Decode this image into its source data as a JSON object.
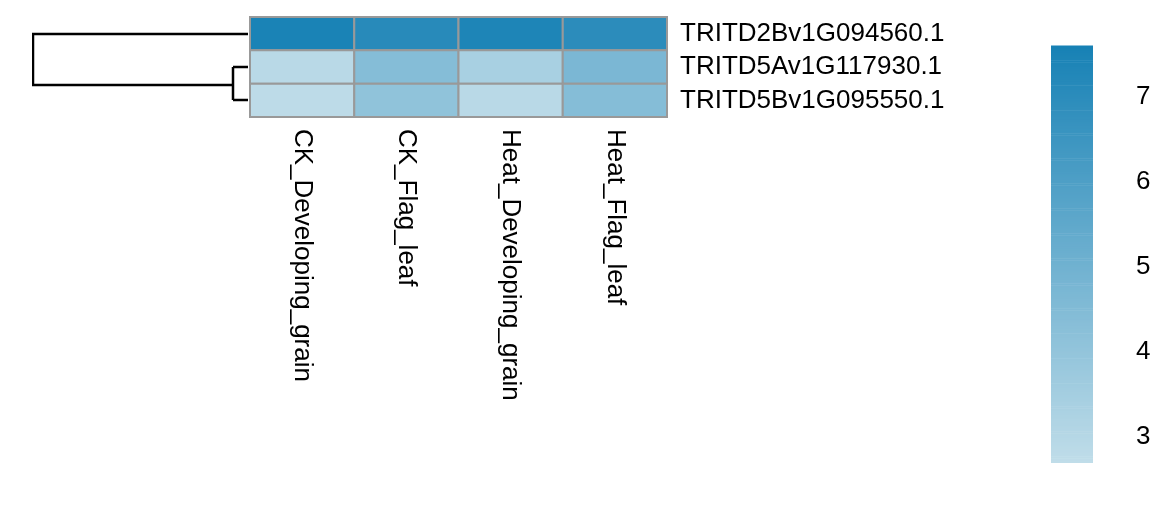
{
  "chart_data": {
    "type": "heatmap",
    "categories": [
      "CK_Developing_grain",
      "CK_Flag_leaf",
      "Heat_Developing_grain",
      "Heat_Flag_leaf"
    ],
    "y_categories": [
      "TRITD2Bv1G094560.1",
      "TRITD5Av1G117930.1",
      "TRITD5Bv1G095550.1"
    ],
    "cells": [
      [
        7.5,
        7.1,
        7.4,
        7.0
      ],
      [
        2.9,
        4.4,
        3.4,
        4.7
      ],
      [
        2.8,
        4.1,
        2.9,
        4.4
      ]
    ],
    "clim": [
      2.7,
      7.6
    ],
    "cticks": [
      3,
      4,
      5,
      6,
      7
    ],
    "colors": [
      "#c0dde9",
      "#1781b5"
    ]
  }
}
